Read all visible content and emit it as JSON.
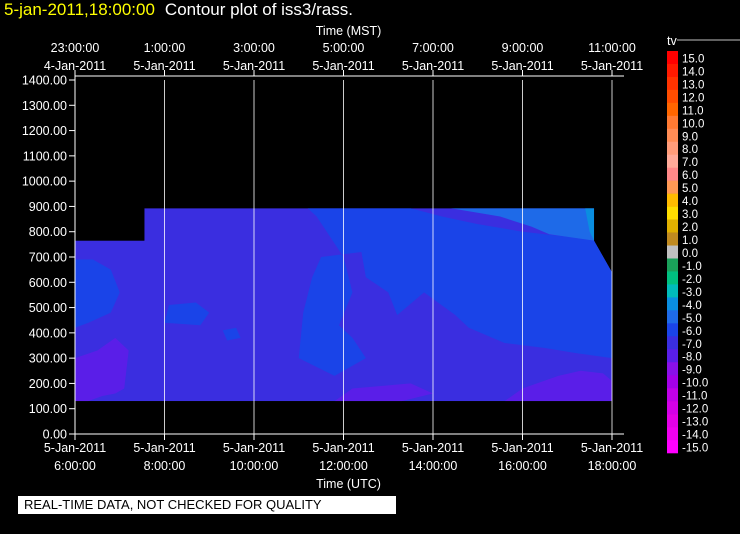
{
  "header": {
    "timestamp": "5-jan-2011,18:00:00",
    "title": "Contour plot of iss3/rass."
  },
  "footer": {
    "qc_notice": "REAL-TIME DATA, NOT CHECKED FOR QUALITY"
  },
  "chart_data": {
    "type": "heatmap",
    "top_axis": {
      "label": "Time (MST)",
      "ticks": [
        {
          "t": 0,
          "line1": "23:00:00",
          "line2": "4-Jan-2011"
        },
        {
          "t": 2,
          "line1": "1:00:00",
          "line2": "5-Jan-2011"
        },
        {
          "t": 4,
          "line1": "3:00:00",
          "line2": "5-Jan-2011"
        },
        {
          "t": 6,
          "line1": "5:00:00",
          "line2": "5-Jan-2011"
        },
        {
          "t": 8,
          "line1": "7:00:00",
          "line2": "5-Jan-2011"
        },
        {
          "t": 10,
          "line1": "9:00:00",
          "line2": "5-Jan-2011"
        },
        {
          "t": 12,
          "line1": "11:00:00",
          "line2": "5-Jan-2011"
        }
      ]
    },
    "bottom_axis": {
      "label": "Time (UTC)",
      "ticks": [
        {
          "t": 0,
          "line1": "5-Jan-2011",
          "line2": "6:00:00"
        },
        {
          "t": 2,
          "line1": "5-Jan-2011",
          "line2": "8:00:00"
        },
        {
          "t": 4,
          "line1": "5-Jan-2011",
          "line2": "10:00:00"
        },
        {
          "t": 6,
          "line1": "5-Jan-2011",
          "line2": "12:00:00"
        },
        {
          "t": 8,
          "line1": "5-Jan-2011",
          "line2": "14:00:00"
        },
        {
          "t": 10,
          "line1": "5-Jan-2011",
          "line2": "16:00:00"
        },
        {
          "t": 12,
          "line1": "5-Jan-2011",
          "line2": "18:00:00"
        }
      ]
    },
    "y_axis": {
      "ylim": [
        0,
        1400
      ],
      "ticks": [
        {
          "v": 0,
          "label": "0.00"
        },
        {
          "v": 100,
          "label": "100.00"
        },
        {
          "v": 200,
          "label": "200.00"
        },
        {
          "v": 300,
          "label": "300.00"
        },
        {
          "v": 400,
          "label": "400.00"
        },
        {
          "v": 500,
          "label": "500.00"
        },
        {
          "v": 600,
          "label": "600.00"
        },
        {
          "v": 700,
          "label": "700.00"
        },
        {
          "v": 800,
          "label": "800.00"
        },
        {
          "v": 900,
          "label": "900.00"
        },
        {
          "v": 1000,
          "label": "1000.00"
        },
        {
          "v": 1100,
          "label": "1100.00"
        },
        {
          "v": 1200,
          "label": "1200.00"
        },
        {
          "v": 1300,
          "label": "1300.00"
        },
        {
          "v": 1400,
          "label": "1400.00"
        }
      ]
    },
    "grid": "vertical",
    "legend": {
      "placement": "right",
      "variable": "tv",
      "levels": [
        {
          "label": "15.0",
          "color": "#ff0000"
        },
        {
          "label": "14.0",
          "color": "#ff1a00"
        },
        {
          "label": "13.0",
          "color": "#ff3300"
        },
        {
          "label": "12.0",
          "color": "#ff4d00"
        },
        {
          "label": "11.0",
          "color": "#ff6600"
        },
        {
          "label": "10.0",
          "color": "#ff7a33"
        },
        {
          "label": "9.0",
          "color": "#ff8c55"
        },
        {
          "label": "8.0",
          "color": "#ff9c7a"
        },
        {
          "label": "7.0",
          "color": "#ffaa99"
        },
        {
          "label": "6.0",
          "color": "#ff8888"
        },
        {
          "label": "5.0",
          "color": "#ff9955"
        },
        {
          "label": "4.0",
          "color": "#ffbb00"
        },
        {
          "label": "3.0",
          "color": "#ffdd00"
        },
        {
          "label": "2.0",
          "color": "#e0b000"
        },
        {
          "label": "1.0",
          "color": "#c08a20"
        },
        {
          "label": "0.0",
          "color": "#c0c0c0"
        },
        {
          "label": "-1.0",
          "color": "#1aa05a"
        },
        {
          "label": "-2.0",
          "color": "#00c080"
        },
        {
          "label": "-3.0",
          "color": "#00bbbb"
        },
        {
          "label": "-4.0",
          "color": "#0a8ee0"
        },
        {
          "label": "-5.0",
          "color": "#1e6ae8"
        },
        {
          "label": "-6.0",
          "color": "#1a44e8"
        },
        {
          "label": "-7.0",
          "color": "#3a2ee0"
        },
        {
          "label": "-8.0",
          "color": "#5a1ee8"
        },
        {
          "label": "-9.0",
          "color": "#8a10e8"
        },
        {
          "label": "-10.0",
          "color": "#a400e8"
        },
        {
          "label": "-11.0",
          "color": "#c000e8"
        },
        {
          "label": "-12.0",
          "color": "#d400e8"
        },
        {
          "label": "-13.0",
          "color": "#e400e8"
        },
        {
          "label": "-14.0",
          "color": "#f000f0"
        },
        {
          "label": "-15.0",
          "color": "#ff00ff"
        }
      ]
    },
    "bands": {
      "colors": {
        "-4": "#0a8ee0",
        "-5": "#1e6ae8",
        "-6": "#1a44e8",
        "-7": "#3a2ee0",
        "-8": "#5a1ee8",
        "-9": "#8a10e8"
      },
      "data_domain": [
        [
          0,
          130
        ],
        [
          0,
          765
        ],
        [
          1.55,
          765
        ],
        [
          1.55,
          893
        ],
        [
          11.6,
          893
        ],
        [
          11.6,
          765
        ],
        [
          12.0,
          640
        ],
        [
          12.0,
          130
        ]
      ],
      "regions": [
        {
          "level": -7,
          "points": [
            [
              0,
              130
            ],
            [
              0,
              765
            ],
            [
              1.55,
              765
            ],
            [
              1.55,
              893
            ],
            [
              11.6,
              893
            ],
            [
              11.6,
              765
            ],
            [
              12.0,
              640
            ],
            [
              12.0,
              130
            ]
          ]
        },
        {
          "level": -6,
          "points": [
            [
              5.2,
              893
            ],
            [
              7.5,
              893
            ],
            [
              8.2,
              860
            ],
            [
              9.0,
              830
            ],
            [
              10.0,
              800
            ],
            [
              11.0,
              780
            ],
            [
              11.6,
              765
            ],
            [
              12.0,
              640
            ],
            [
              12.0,
              300
            ],
            [
              11.2,
              320
            ],
            [
              10.5,
              340
            ],
            [
              9.6,
              360
            ],
            [
              8.8,
              420
            ],
            [
              8.5,
              470
            ],
            [
              7.8,
              560
            ],
            [
              7.2,
              470
            ],
            [
              7.0,
              560
            ],
            [
              6.5,
              620
            ],
            [
              6.4,
              720
            ],
            [
              5.5,
              700
            ],
            [
              5.3,
              620
            ],
            [
              5.1,
              480
            ],
            [
              5.0,
              300
            ],
            [
              5.8,
              230
            ],
            [
              6.5,
              300
            ],
            [
              6.2,
              380
            ],
            [
              5.9,
              430
            ],
            [
              6.2,
              560
            ],
            [
              6.0,
              700
            ],
            [
              5.7,
              780
            ],
            [
              5.4,
              860
            ]
          ]
        },
        {
          "level": -6,
          "points": [
            [
              0,
              420
            ],
            [
              0.3,
              440
            ],
            [
              0.8,
              480
            ],
            [
              1.0,
              560
            ],
            [
              0.8,
              650
            ],
            [
              0.4,
              690
            ],
            [
              0,
              690
            ]
          ]
        },
        {
          "level": -6,
          "points": [
            [
              2.0,
              440
            ],
            [
              2.8,
              430
            ],
            [
              3.0,
              480
            ],
            [
              2.7,
              520
            ],
            [
              2.1,
              510
            ]
          ]
        },
        {
          "level": -6,
          "points": [
            [
              3.4,
              370
            ],
            [
              3.7,
              380
            ],
            [
              3.6,
              420
            ],
            [
              3.3,
              410
            ]
          ]
        },
        {
          "level": -5,
          "points": [
            [
              8.4,
              893
            ],
            [
              11.6,
              893
            ],
            [
              11.6,
              765
            ],
            [
              10.6,
              790
            ],
            [
              10.2,
              820
            ],
            [
              9.5,
              860
            ]
          ]
        },
        {
          "level": -4,
          "points": [
            [
              11.4,
              893
            ],
            [
              11.6,
              893
            ],
            [
              11.6,
              765
            ],
            [
              11.5,
              800
            ]
          ]
        },
        {
          "level": -8,
          "points": [
            [
              0,
              130
            ],
            [
              0,
              300
            ],
            [
              0.5,
              330
            ],
            [
              0.9,
              380
            ],
            [
              1.2,
              330
            ],
            [
              1.1,
              180
            ],
            [
              0.9,
              160
            ],
            [
              0.6,
              150
            ],
            [
              0.3,
              130
            ]
          ]
        },
        {
          "level": -8,
          "points": [
            [
              5.8,
              130
            ],
            [
              6.2,
              180
            ],
            [
              7.5,
              200
            ],
            [
              8.0,
              160
            ],
            [
              7.3,
              130
            ]
          ]
        },
        {
          "level": -8,
          "points": [
            [
              9.6,
              130
            ],
            [
              10.0,
              180
            ],
            [
              10.8,
              230
            ],
            [
              11.3,
              250
            ],
            [
              11.8,
              240
            ],
            [
              12.0,
              210
            ],
            [
              12.0,
              130
            ]
          ]
        }
      ]
    }
  }
}
